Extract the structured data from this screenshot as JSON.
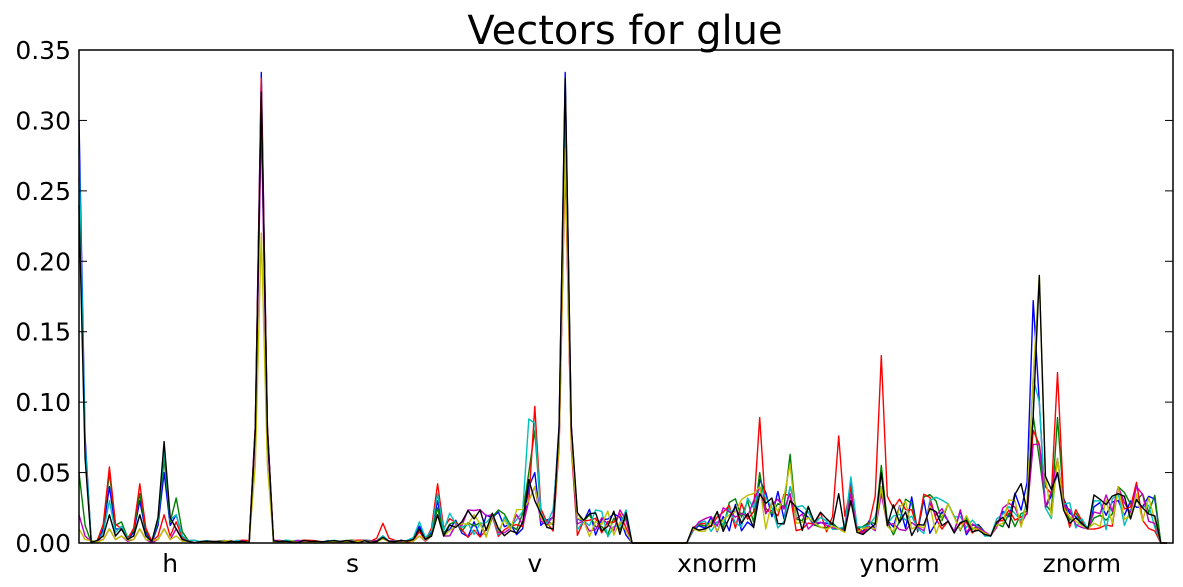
{
  "chart_data": {
    "type": "line",
    "title": "Vectors for glue",
    "xlabel": "",
    "ylabel": "",
    "xlim": [
      0,
      180
    ],
    "ylim": [
      0,
      0.35
    ],
    "yticks": [
      "0.00",
      "0.05",
      "0.10",
      "0.15",
      "0.20",
      "0.25",
      "0.30",
      "0.35"
    ],
    "yticks_values": [
      0,
      0.05,
      0.1,
      0.15,
      0.2,
      0.25,
      0.3,
      0.35
    ],
    "categories": [
      "h",
      "s",
      "v",
      "xnorm",
      "ynorm",
      "znorm"
    ],
    "category_centers": [
      15,
      45,
      75,
      105,
      135,
      165
    ],
    "grid": false,
    "legend": "none",
    "series_colors": [
      "#0000ff",
      "#008000",
      "#ff0000",
      "#00bfbf",
      "#bf00bf",
      "#bfbf00",
      "#000000"
    ],
    "peaks": [
      {
        "x": 0,
        "values": [
          0.3,
          0.05,
          0.26,
          0.28,
          0.02,
          0.01,
          0.24
        ]
      },
      {
        "x": 5,
        "values": [
          0.04,
          0.05,
          0.054,
          0.03,
          0.01,
          0.01,
          0.02
        ]
      },
      {
        "x": 7,
        "values": [
          0.01,
          0.015,
          0.01,
          0.012,
          0.005,
          0.005,
          0.01
        ]
      },
      {
        "x": 10,
        "values": [
          0.03,
          0.035,
          0.042,
          0.02,
          0.01,
          0.01,
          0.02
        ]
      },
      {
        "x": 14,
        "values": [
          0.05,
          0.06,
          0.02,
          0.066,
          0.01,
          0.01,
          0.072
        ]
      },
      {
        "x": 16,
        "values": [
          0.02,
          0.032,
          0.015,
          0.02,
          0.01,
          0.005,
          0.01
        ]
      },
      {
        "x": 30,
        "values": [
          0.334,
          0.31,
          0.33,
          0.31,
          0.3,
          0.22,
          0.32
        ]
      },
      {
        "x": 50,
        "values": [
          0.005,
          0.005,
          0.014,
          0.005,
          0.003,
          0.003,
          0.004
        ]
      },
      {
        "x": 56,
        "values": [
          0.012,
          0.01,
          0.008,
          0.015,
          0.005,
          0.005,
          0.01
        ]
      },
      {
        "x": 59,
        "values": [
          0.03,
          0.025,
          0.042,
          0.035,
          0.02,
          0.02,
          0.02
        ]
      },
      {
        "x": 74,
        "values": [
          0.04,
          0.05,
          0.03,
          0.088,
          0.03,
          0.03,
          0.045
        ]
      },
      {
        "x": 75,
        "values": [
          0.05,
          0.08,
          0.097,
          0.085,
          0.04,
          0.04,
          0.03
        ]
      },
      {
        "x": 80,
        "values": [
          0.334,
          0.3,
          0.27,
          0.3,
          0.28,
          0.28,
          0.33
        ]
      },
      {
        "x": 112,
        "values": [
          0.045,
          0.05,
          0.089,
          0.04,
          0.04,
          0.04,
          0.035
        ]
      },
      {
        "x": 117,
        "values": [
          0.04,
          0.063,
          0.03,
          0.04,
          0.035,
          0.056,
          0.03
        ]
      },
      {
        "x": 125,
        "values": [
          0.01,
          0.01,
          0.076,
          0.01,
          0.01,
          0.01,
          0.035
        ]
      },
      {
        "x": 127,
        "values": [
          0.045,
          0.04,
          0.04,
          0.047,
          0.035,
          0.03,
          0.03
        ]
      },
      {
        "x": 132,
        "values": [
          0.04,
          0.055,
          0.133,
          0.04,
          0.035,
          0.04,
          0.05
        ]
      },
      {
        "x": 157,
        "values": [
          0.172,
          0.09,
          0.08,
          0.117,
          0.07,
          0.118,
          0.09
        ]
      },
      {
        "x": 158,
        "values": [
          0.1,
          0.06,
          0.07,
          0.1,
          0.07,
          0.19,
          0.19
        ]
      },
      {
        "x": 161,
        "values": [
          0.05,
          0.089,
          0.121,
          0.06,
          0.06,
          0.06,
          0.05
        ]
      },
      {
        "x": 171,
        "values": [
          0.03,
          0.04,
          0.04,
          0.035,
          0.04,
          0.04,
          0.035
        ]
      },
      {
        "x": 174,
        "values": [
          0.02,
          0.03,
          0.043,
          0.03,
          0.04,
          0.03,
          0.02
        ]
      }
    ]
  }
}
